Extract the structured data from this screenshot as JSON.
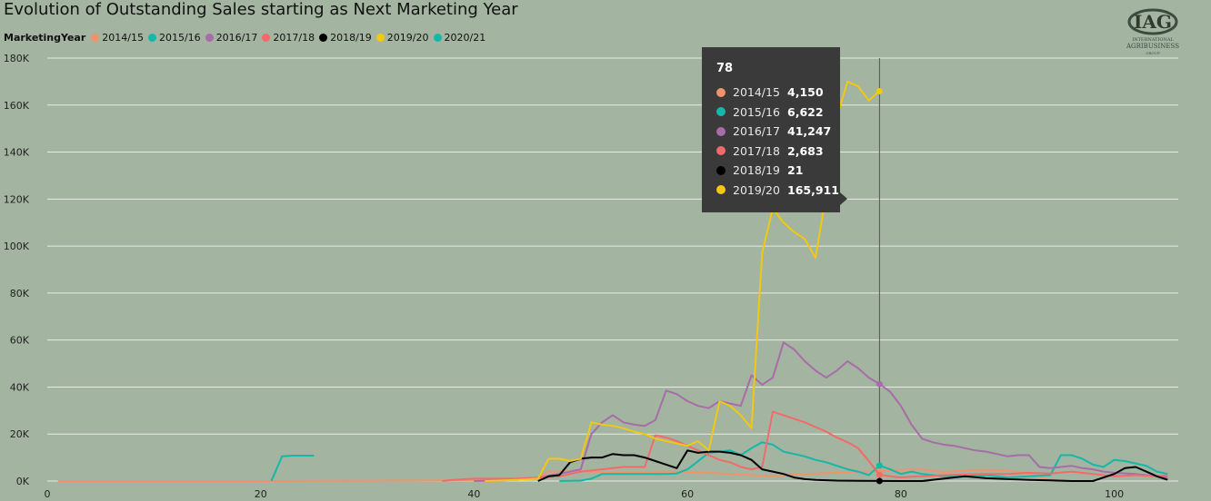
{
  "title": "Evolution of Outstanding Sales starting as Next Marketing Year",
  "legend_title": "MarketingYear",
  "logo": {
    "monogram": "IAG",
    "line1": "INTERNATIONAL",
    "line2": "AGRIBUSINESS",
    "line3": "GROUP",
    "icon": "iag-logo-icon"
  },
  "tooltip": {
    "header": "78",
    "rows": [
      {
        "name": "2014/15",
        "value": "4,150",
        "color": "#f0936b"
      },
      {
        "name": "2015/16",
        "value": "6,622",
        "color": "#15b8a8"
      },
      {
        "name": "2016/17",
        "value": "41,247",
        "color": "#a86ca8"
      },
      {
        "name": "2017/18",
        "value": "2,683",
        "color": "#f36a6a"
      },
      {
        "name": "2018/19",
        "value": "21",
        "color": "#000000"
      },
      {
        "name": "2019/20",
        "value": "165,911",
        "color": "#f2c811"
      }
    ]
  },
  "chart_data": {
    "type": "line",
    "title": "Evolution of Outstanding Sales starting as Next Marketing Year",
    "xlim": [
      0,
      106
    ],
    "ylim": [
      0,
      180000
    ],
    "x_ticks": [
      0,
      20,
      40,
      60,
      80,
      100
    ],
    "y_ticks": [
      0,
      20000,
      40000,
      60000,
      80000,
      100000,
      120000,
      140000,
      160000,
      180000
    ],
    "y_tick_labels": [
      "0K",
      "20K",
      "40K",
      "60K",
      "80K",
      "100K",
      "120K",
      "140K",
      "160K",
      "180K"
    ],
    "grid": "horizontal",
    "legend": "top-left",
    "hover_x": 78,
    "series": [
      {
        "name": "2014/15",
        "color": "#f0936b",
        "points": [
          [
            1,
            0
          ],
          [
            20,
            0
          ],
          [
            40,
            300
          ],
          [
            44,
            800
          ],
          [
            46,
            1500
          ],
          [
            47,
            4000
          ],
          [
            50,
            4200
          ],
          [
            52,
            3800
          ],
          [
            55,
            3500
          ],
          [
            58,
            4000
          ],
          [
            60,
            3800
          ],
          [
            62,
            3500
          ],
          [
            64,
            3000
          ],
          [
            66,
            2500
          ],
          [
            68,
            2200
          ],
          [
            72,
            3200
          ],
          [
            76,
            4000
          ],
          [
            78,
            4150
          ],
          [
            80,
            4800
          ],
          [
            82,
            5000
          ],
          [
            84,
            3800
          ],
          [
            86,
            4500
          ],
          [
            88,
            4800
          ],
          [
            90,
            4500
          ],
          [
            92,
            3000
          ],
          [
            94,
            500
          ],
          [
            95,
            0
          ]
        ]
      },
      {
        "name": "2015/16",
        "color": "#15b8a8",
        "points": [
          [
            48,
            0
          ],
          [
            50,
            200
          ],
          [
            51,
            1000
          ],
          [
            52,
            3000
          ],
          [
            54,
            3000
          ],
          [
            56,
            3000
          ],
          [
            58,
            3000
          ],
          [
            59,
            3200
          ],
          [
            60,
            5000
          ],
          [
            62,
            12000
          ],
          [
            64,
            13000
          ],
          [
            65,
            11000
          ],
          [
            66,
            14000
          ],
          [
            67,
            16500
          ],
          [
            68,
            15500
          ],
          [
            69,
            12500
          ],
          [
            70,
            11500
          ],
          [
            71,
            10500
          ],
          [
            72,
            9000
          ],
          [
            73,
            8000
          ],
          [
            74,
            6500
          ],
          [
            75,
            5000
          ],
          [
            76,
            4000
          ],
          [
            77,
            2500
          ],
          [
            78,
            6622
          ],
          [
            79,
            5000
          ],
          [
            80,
            3000
          ],
          [
            81,
            4000
          ],
          [
            82,
            3000
          ],
          [
            83,
            2500
          ],
          [
            84,
            2000
          ],
          [
            86,
            1800
          ],
          [
            88,
            2500
          ],
          [
            90,
            1500
          ],
          [
            92,
            2000
          ],
          [
            94,
            2500
          ],
          [
            95,
            11000
          ],
          [
            96,
            11000
          ],
          [
            97,
            9500
          ],
          [
            98,
            7000
          ],
          [
            99,
            6000
          ],
          [
            100,
            9000
          ],
          [
            101,
            8500
          ],
          [
            102,
            7500
          ],
          [
            103,
            6500
          ],
          [
            104,
            4000
          ],
          [
            105,
            3000
          ]
        ]
      },
      {
        "name": "2016/17",
        "color": "#a86ca8",
        "points": [
          [
            40,
            0
          ],
          [
            44,
            500
          ],
          [
            46,
            1500
          ],
          [
            48,
            3000
          ],
          [
            50,
            5000
          ],
          [
            51,
            20000
          ],
          [
            52,
            25000
          ],
          [
            53,
            28000
          ],
          [
            54,
            25000
          ],
          [
            55,
            24000
          ],
          [
            56,
            23500
          ],
          [
            57,
            26000
          ],
          [
            58,
            38500
          ],
          [
            59,
            37000
          ],
          [
            60,
            34000
          ],
          [
            61,
            32000
          ],
          [
            62,
            31000
          ],
          [
            63,
            34000
          ],
          [
            64,
            33000
          ],
          [
            65,
            32000
          ],
          [
            66,
            45000
          ],
          [
            67,
            41000
          ],
          [
            68,
            44000
          ],
          [
            69,
            59000
          ],
          [
            70,
            56000
          ],
          [
            71,
            51000
          ],
          [
            72,
            47000
          ],
          [
            73,
            44000
          ],
          [
            74,
            47000
          ],
          [
            75,
            51000
          ],
          [
            76,
            48000
          ],
          [
            77,
            44000
          ],
          [
            78,
            41247
          ],
          [
            79,
            38000
          ],
          [
            80,
            32000
          ],
          [
            81,
            24000
          ],
          [
            82,
            18000
          ],
          [
            83,
            16500
          ],
          [
            84,
            15500
          ],
          [
            85,
            15000
          ],
          [
            86,
            14000
          ],
          [
            87,
            13000
          ],
          [
            88,
            12500
          ],
          [
            89,
            11500
          ],
          [
            90,
            10500
          ],
          [
            91,
            11000
          ],
          [
            92,
            11000
          ],
          [
            93,
            6000
          ],
          [
            94,
            5500
          ],
          [
            95,
            6000
          ],
          [
            96,
            6500
          ],
          [
            97,
            5500
          ],
          [
            98,
            5000
          ],
          [
            99,
            4000
          ],
          [
            100,
            3500
          ],
          [
            102,
            3000
          ],
          [
            104,
            2000
          ],
          [
            105,
            1500
          ]
        ]
      },
      {
        "name": "2017/18",
        "color": "#f36a6a",
        "points": [
          [
            37,
            0
          ],
          [
            38,
            500
          ],
          [
            40,
            1000
          ],
          [
            44,
            1000
          ],
          [
            46,
            1500
          ],
          [
            48,
            2000
          ],
          [
            50,
            4000
          ],
          [
            52,
            5000
          ],
          [
            53,
            5500
          ],
          [
            54,
            6000
          ],
          [
            55,
            6000
          ],
          [
            56,
            6000
          ],
          [
            57,
            19500
          ],
          [
            58,
            18500
          ],
          [
            59,
            17000
          ],
          [
            60,
            15000
          ],
          [
            61,
            13000
          ],
          [
            62,
            11000
          ],
          [
            63,
            9000
          ],
          [
            64,
            8000
          ],
          [
            65,
            6000
          ],
          [
            66,
            5000
          ],
          [
            67,
            6000
          ],
          [
            68,
            29500
          ],
          [
            69,
            28000
          ],
          [
            70,
            26500
          ],
          [
            71,
            25000
          ],
          [
            72,
            23000
          ],
          [
            73,
            21000
          ],
          [
            74,
            18500
          ],
          [
            75,
            16500
          ],
          [
            76,
            14000
          ],
          [
            77,
            8500
          ],
          [
            78,
            2683
          ],
          [
            79,
            2000
          ],
          [
            80,
            1500
          ],
          [
            81,
            1800
          ],
          [
            82,
            2000
          ],
          [
            84,
            2500
          ],
          [
            86,
            2800
          ],
          [
            88,
            3000
          ],
          [
            90,
            3000
          ],
          [
            92,
            3500
          ],
          [
            94,
            3200
          ],
          [
            96,
            4000
          ],
          [
            98,
            3000
          ],
          [
            100,
            2000
          ],
          [
            102,
            2500
          ],
          [
            104,
            2000
          ],
          [
            105,
            2500
          ]
        ]
      },
      {
        "name": "2018/19",
        "color": "#000000",
        "points": [
          [
            46,
            0
          ],
          [
            47,
            2000
          ],
          [
            48,
            2500
          ],
          [
            49,
            8000
          ],
          [
            50,
            9500
          ],
          [
            51,
            10000
          ],
          [
            52,
            10000
          ],
          [
            53,
            11500
          ],
          [
            54,
            11000
          ],
          [
            55,
            11000
          ],
          [
            56,
            10000
          ],
          [
            57,
            8500
          ],
          [
            58,
            7000
          ],
          [
            59,
            5500
          ],
          [
            60,
            13000
          ],
          [
            61,
            12000
          ],
          [
            62,
            12500
          ],
          [
            63,
            12500
          ],
          [
            64,
            12000
          ],
          [
            65,
            11000
          ],
          [
            66,
            9000
          ],
          [
            67,
            5000
          ],
          [
            68,
            4000
          ],
          [
            69,
            3000
          ],
          [
            70,
            1500
          ],
          [
            71,
            800
          ],
          [
            72,
            500
          ],
          [
            74,
            200
          ],
          [
            76,
            100
          ],
          [
            78,
            21
          ],
          [
            80,
            0
          ],
          [
            82,
            0
          ],
          [
            84,
            1000
          ],
          [
            86,
            2000
          ],
          [
            88,
            1200
          ],
          [
            90,
            800
          ],
          [
            92,
            500
          ],
          [
            94,
            300
          ],
          [
            96,
            0
          ],
          [
            98,
            0
          ],
          [
            100,
            3000
          ],
          [
            101,
            5500
          ],
          [
            102,
            6000
          ],
          [
            103,
            4000
          ],
          [
            104,
            2000
          ],
          [
            105,
            500
          ]
        ]
      },
      {
        "name": "2019/20",
        "color": "#f2c811",
        "points": [
          [
            41,
            0
          ],
          [
            44,
            500
          ],
          [
            46,
            1000
          ],
          [
            47,
            9500
          ],
          [
            48,
            9500
          ],
          [
            49,
            8500
          ],
          [
            50,
            9500
          ],
          [
            51,
            25000
          ],
          [
            52,
            24000
          ],
          [
            53,
            23500
          ],
          [
            54,
            22500
          ],
          [
            55,
            21000
          ],
          [
            56,
            20000
          ],
          [
            57,
            18000
          ],
          [
            58,
            17000
          ],
          [
            59,
            16000
          ],
          [
            60,
            15000
          ],
          [
            61,
            17000
          ],
          [
            62,
            13000
          ],
          [
            63,
            34000
          ],
          [
            64,
            32000
          ],
          [
            65,
            28000
          ],
          [
            66,
            22500
          ],
          [
            67,
            97000
          ],
          [
            68,
            116000
          ],
          [
            69,
            110000
          ],
          [
            70,
            106000
          ],
          [
            71,
            103000
          ],
          [
            72,
            95000
          ],
          [
            73,
            122000
          ],
          [
            74,
            155000
          ],
          [
            75,
            170000
          ],
          [
            76,
            168000
          ],
          [
            77,
            162000
          ],
          [
            78,
            165911
          ]
        ]
      },
      {
        "name": "2020/21",
        "color": "#15b8a8",
        "points": [
          [
            21,
            0
          ],
          [
            22,
            10500
          ],
          [
            23,
            10800
          ],
          [
            25,
            10800
          ]
        ]
      }
    ]
  }
}
